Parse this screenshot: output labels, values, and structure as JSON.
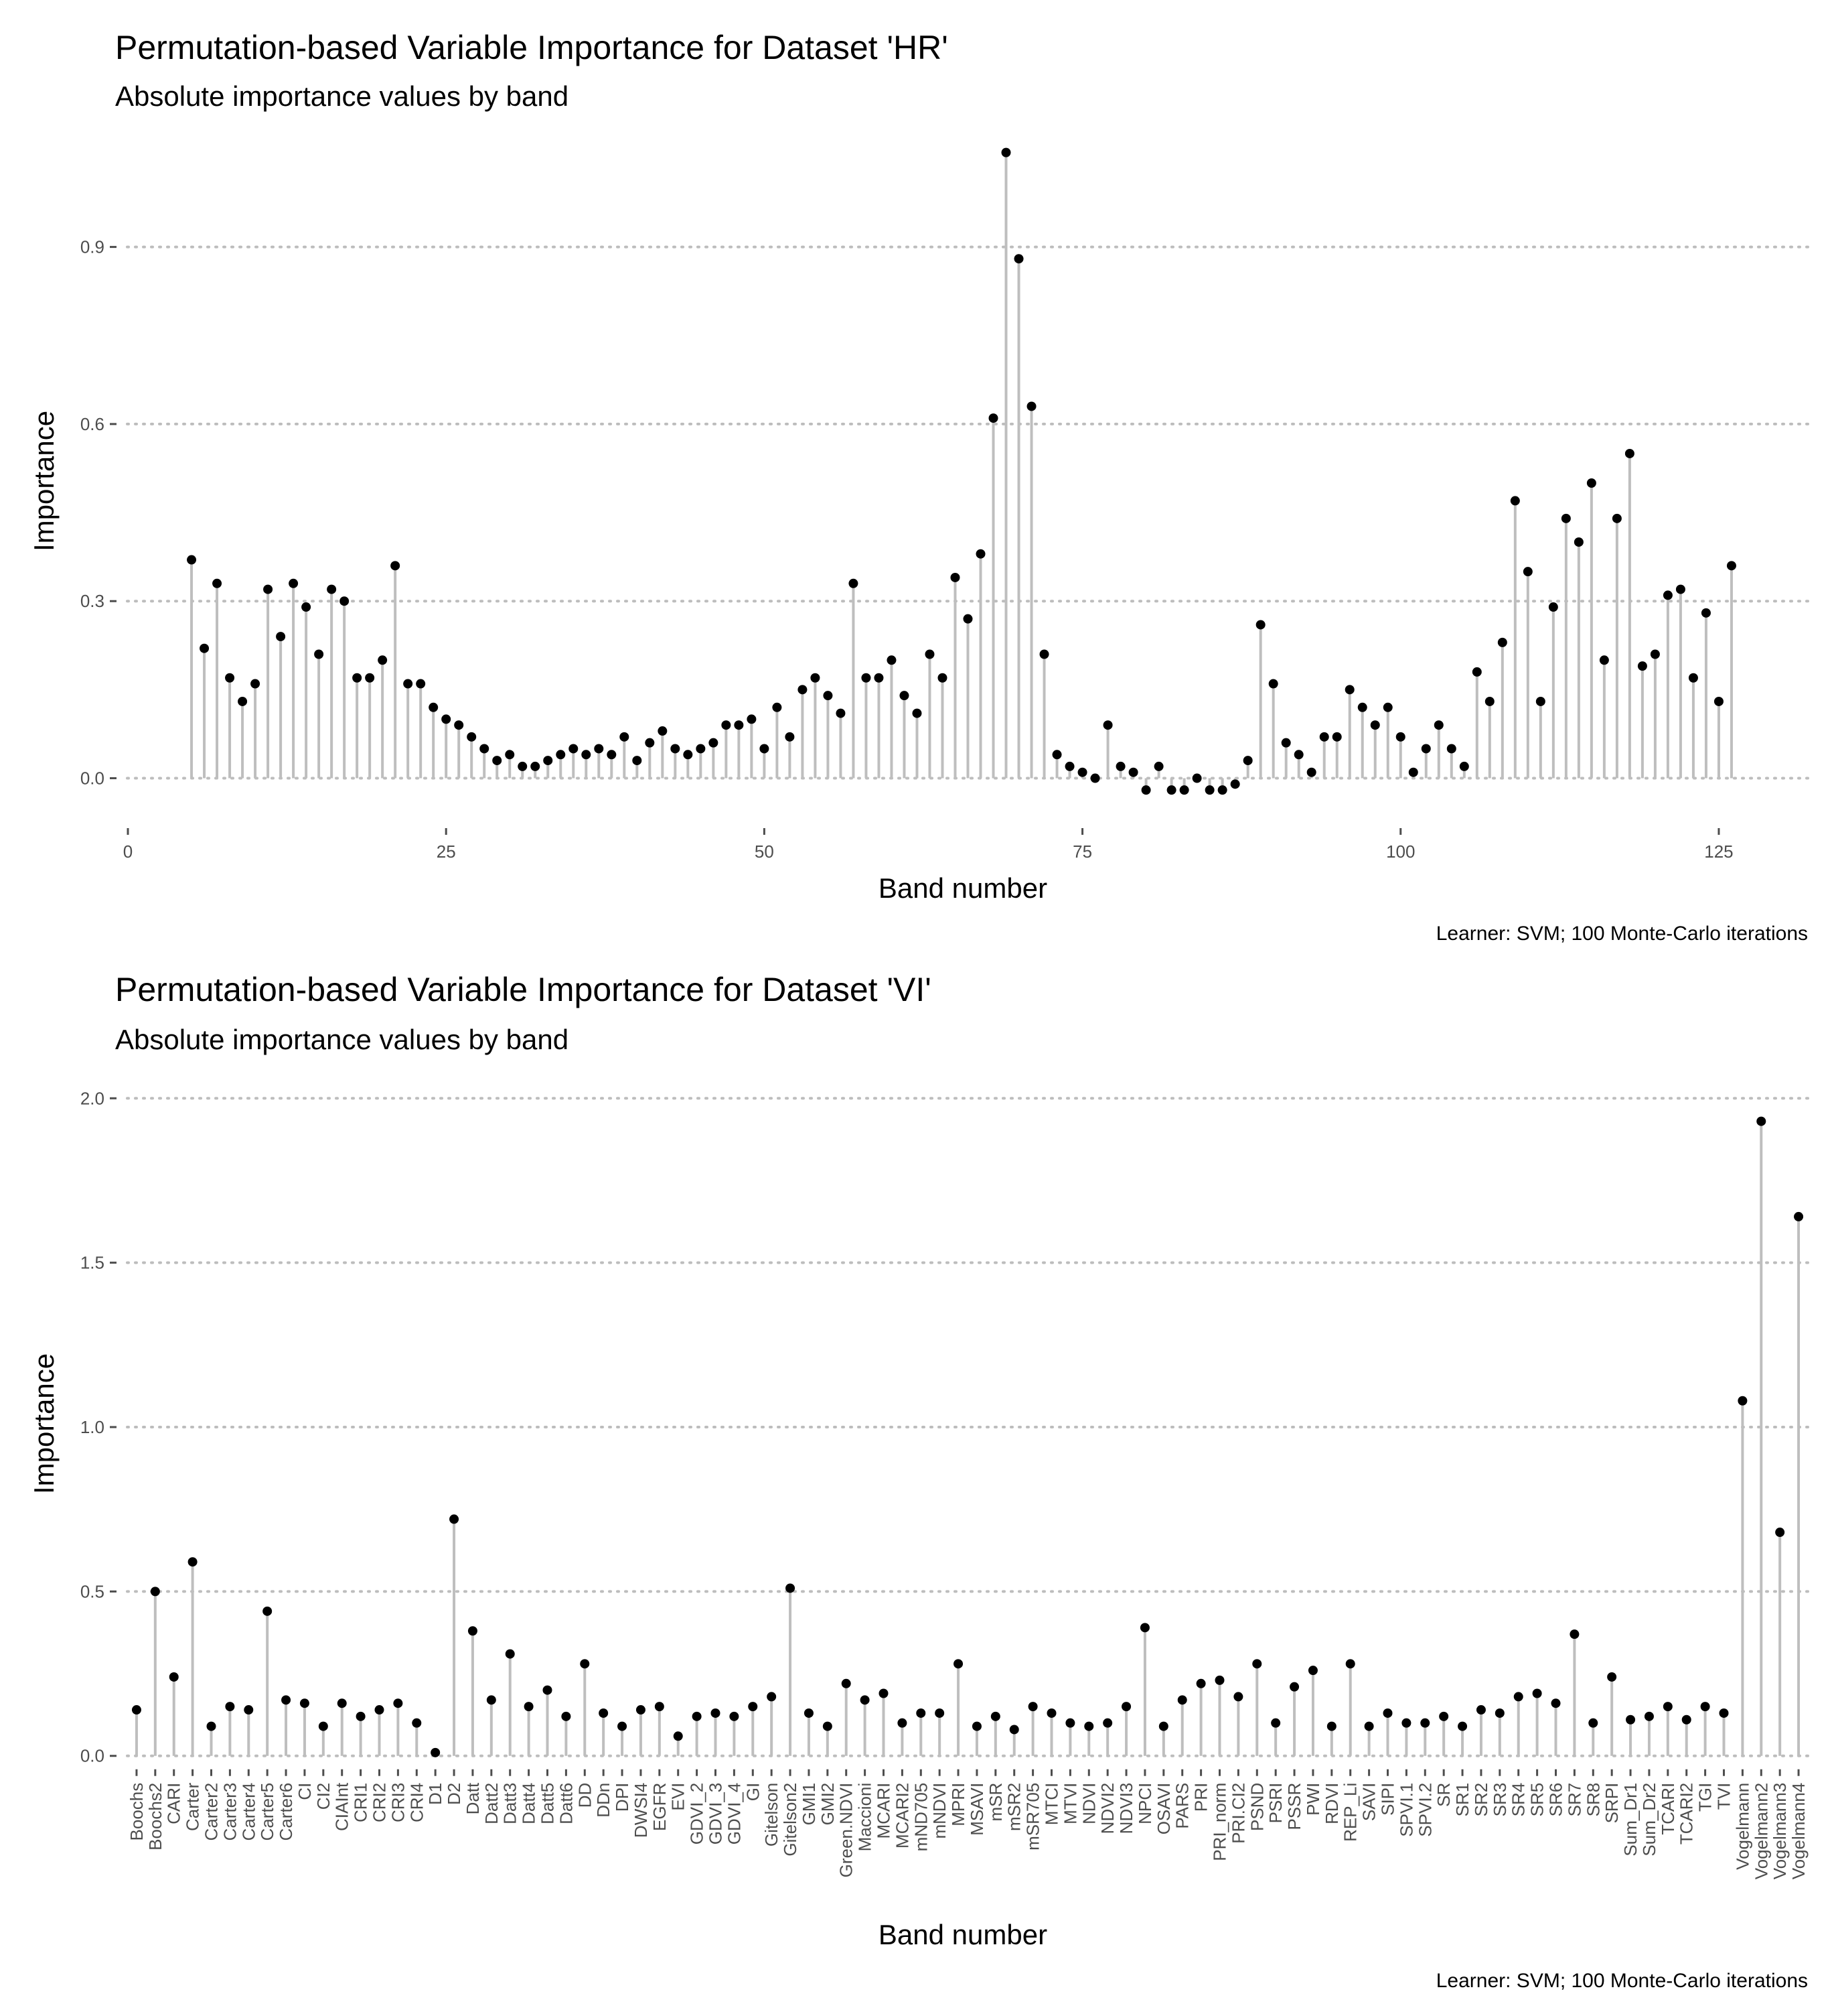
{
  "chart_data": [
    {
      "type": "lollipop",
      "title": "Permutation-based Variable Importance for Dataset 'HR'",
      "subtitle": "Absolute importance values by band",
      "xlabel": "Band number",
      "ylabel": "Importance",
      "caption": "Learner: SVM; 100 Monte-Carlo iterations",
      "xlim": [
        -1,
        132
      ],
      "ylim": [
        -0.08,
        1.08
      ],
      "xticks": [
        0,
        25,
        50,
        75,
        100,
        125
      ],
      "xtick_labels": [
        "0",
        "25",
        "50",
        "75",
        "100",
        "125"
      ],
      "yticks": [
        0.0,
        0.3,
        0.6,
        0.9
      ],
      "ytick_labels": [
        "0.0",
        "0.3",
        "0.6",
        "0.9"
      ],
      "grid": "horizontal-dotted",
      "colors": {
        "stem": "#bebebe",
        "point": "#000000",
        "grid": "#bdbdbd"
      },
      "x": [
        5,
        6,
        7,
        8,
        9,
        10,
        11,
        12,
        13,
        14,
        15,
        16,
        17,
        18,
        19,
        20,
        21,
        22,
        23,
        24,
        25,
        26,
        27,
        28,
        29,
        30,
        31,
        32,
        33,
        34,
        35,
        36,
        37,
        38,
        39,
        40,
        41,
        42,
        43,
        44,
        45,
        46,
        47,
        48,
        49,
        50,
        51,
        52,
        53,
        54,
        55,
        56,
        57,
        58,
        59,
        60,
        61,
        62,
        63,
        64,
        65,
        66,
        67,
        68,
        69,
        70,
        71,
        72,
        73,
        74,
        75,
        76,
        77,
        78,
        79,
        80,
        81,
        82,
        83,
        84,
        85,
        86,
        87,
        88,
        89,
        90,
        91,
        92,
        93,
        94,
        95,
        96,
        97,
        98,
        99,
        100,
        101,
        102,
        103,
        104,
        105,
        106,
        107,
        108,
        109,
        110,
        111,
        112,
        113,
        114,
        115,
        116,
        117,
        118,
        119,
        120,
        121,
        122,
        123,
        124,
        125,
        126
      ],
      "values": [
        0.37,
        0.22,
        0.33,
        0.17,
        0.13,
        0.16,
        0.32,
        0.24,
        0.33,
        0.29,
        0.21,
        0.32,
        0.3,
        0.17,
        0.17,
        0.2,
        0.36,
        0.16,
        0.16,
        0.12,
        0.1,
        0.09,
        0.07,
        0.05,
        0.03,
        0.04,
        0.02,
        0.02,
        0.03,
        0.04,
        0.05,
        0.04,
        0.05,
        0.04,
        0.07,
        0.03,
        0.06,
        0.08,
        0.05,
        0.04,
        0.05,
        0.06,
        0.09,
        0.09,
        0.1,
        0.05,
        0.12,
        0.07,
        0.15,
        0.17,
        0.14,
        0.11,
        0.33,
        0.17,
        0.17,
        0.2,
        0.14,
        0.11,
        0.21,
        0.17,
        0.34,
        0.27,
        0.38,
        0.61,
        1.06,
        0.88,
        0.63,
        0.21,
        0.04,
        0.02,
        0.01,
        0.0,
        0.09,
        0.02,
        0.01,
        -0.02,
        0.02,
        -0.02,
        -0.02,
        0.0,
        -0.02,
        -0.02,
        -0.01,
        0.03,
        0.26,
        0.16,
        0.06,
        0.04,
        0.01,
        0.07,
        0.07,
        0.15,
        0.12,
        0.09,
        0.12,
        0.07,
        0.01,
        0.05,
        0.09,
        0.05,
        0.02,
        0.18,
        0.13,
        0.23,
        0.47,
        0.35,
        0.13,
        0.29,
        0.44,
        0.4,
        0.5,
        0.2,
        0.44,
        0.55,
        0.19,
        0.21,
        0.31,
        0.32,
        0.17,
        0.28,
        0.13,
        0.36
      ]
    },
    {
      "type": "lollipop",
      "title": "Permutation-based Variable Importance for Dataset 'VI'",
      "subtitle": "Absolute importance values by band",
      "xlabel": "Band number",
      "ylabel": "Importance",
      "caption": "Learner: SVM; 100 Monte-Carlo iterations",
      "ylim": [
        -0.08,
        2.08
      ],
      "yticks": [
        0.0,
        0.5,
        1.0,
        1.5,
        2.0
      ],
      "ytick_labels": [
        "0.0",
        "0.5",
        "1.0",
        "1.5",
        "2.0"
      ],
      "grid": "horizontal-dotted",
      "colors": {
        "stem": "#bebebe",
        "point": "#000000",
        "grid": "#bdbdbd"
      },
      "categories": [
        "Boochs",
        "Boochs2",
        "CARI",
        "Carter",
        "Carter2",
        "Carter3",
        "Carter4",
        "Carter5",
        "Carter6",
        "CI",
        "CI2",
        "CIAInt",
        "CRI1",
        "CRI2",
        "CRI3",
        "CRI4",
        "D1",
        "D2",
        "Datt",
        "Datt2",
        "Datt3",
        "Datt4",
        "Datt5",
        "Datt6",
        "DD",
        "DDn",
        "DPI",
        "DWSI4",
        "EGFR",
        "EVI",
        "GDVI_2",
        "GDVI_3",
        "GDVI_4",
        "GI",
        "Gitelson",
        "Gitelson2",
        "GMI1",
        "GMI2",
        "Green.NDVI",
        "Maccioni",
        "MCARI",
        "MCARI2",
        "mND705",
        "mNDVI",
        "MPRI",
        "MSAVI",
        "mSR",
        "mSR2",
        "mSR705",
        "MTCI",
        "MTVI",
        "NDVI",
        "NDVI2",
        "NDVI3",
        "NPCI",
        "OSAVI",
        "PARS",
        "PRI",
        "PRI_norm",
        "PRI.CI2",
        "PSND",
        "PSRI",
        "PSSR",
        "PWI",
        "RDVI",
        "REP_Li",
        "SAVI",
        "SIPI",
        "SPVI.1",
        "SPVI.2",
        "SR",
        "SR1",
        "SR2",
        "SR3",
        "SR4",
        "SR5",
        "SR6",
        "SR7",
        "SR8",
        "SRPI",
        "Sum_Dr1",
        "Sum_Dr2",
        "TCARI",
        "TCARI2",
        "TGI",
        "TVI",
        "Vogelmann",
        "Vogelmann2",
        "Vogelmann3",
        "Vogelmann4"
      ],
      "values": [
        0.14,
        0.5,
        0.24,
        0.59,
        0.09,
        0.15,
        0.14,
        0.44,
        0.17,
        0.16,
        0.09,
        0.16,
        0.12,
        0.14,
        0.16,
        0.1,
        0.01,
        0.72,
        0.38,
        0.17,
        0.31,
        0.15,
        0.2,
        0.12,
        0.28,
        0.13,
        0.09,
        0.14,
        0.15,
        0.06,
        0.12,
        0.13,
        0.12,
        0.15,
        0.18,
        0.51,
        0.13,
        0.09,
        0.22,
        0.17,
        0.19,
        0.1,
        0.13,
        0.13,
        0.28,
        0.09,
        0.12,
        0.08,
        0.15,
        0.13,
        0.1,
        0.09,
        0.1,
        0.15,
        0.39,
        0.09,
        0.17,
        0.22,
        0.23,
        0.18,
        0.28,
        0.1,
        0.21,
        0.26,
        0.09,
        0.28,
        0.09,
        0.13,
        0.1,
        0.1,
        0.12,
        0.09,
        0.14,
        0.13,
        0.18,
        0.19,
        0.16,
        0.37,
        0.1,
        0.24,
        0.11,
        0.12,
        0.15,
        0.11,
        0.15,
        0.13,
        1.08,
        1.93,
        0.68,
        1.64
      ]
    }
  ]
}
